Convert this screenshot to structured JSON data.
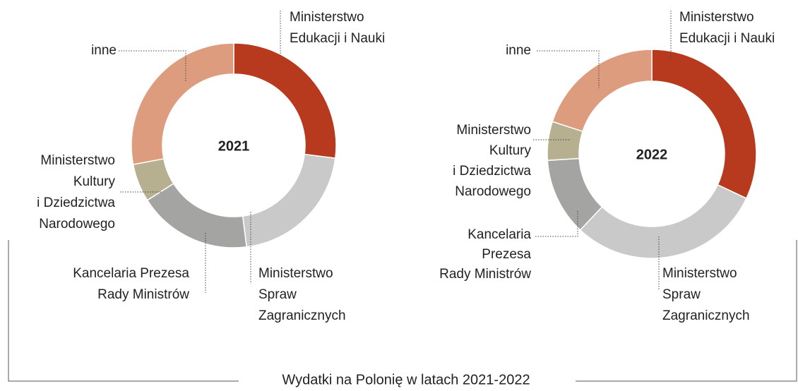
{
  "caption": "Wydatki na Polonię w latach 2021-2022",
  "chart_data": [
    {
      "type": "donut",
      "title": "2021",
      "categories": [
        "Ministerstwo\nEdukacji i Nauki",
        "Ministerstwo\nSpraw\nZagranicznych",
        "Kancelaria Prezesa\nRady Ministrów",
        "Ministerstwo\nKultury\ni Dziedzictwa\nNarodowego",
        "inne"
      ],
      "values": [
        27,
        21,
        18,
        6,
        28
      ],
      "colors": [
        "#b83a1e",
        "#c9c9c9",
        "#a4a4a2",
        "#b6af90",
        "#dd9c7d"
      ]
    },
    {
      "type": "donut",
      "title": "2022",
      "categories": [
        "Ministerstwo\nEdukacji i Nauki",
        "Ministerstwo\nSpraw\nZagranicznych",
        "Kancelaria\nPrezesa\nRady Ministrów",
        "Ministerstwo\nKultury\ni Dziedzictwa\nNarodowego",
        "inne"
      ],
      "values": [
        32,
        30,
        12,
        6,
        20
      ],
      "colors": [
        "#b83a1e",
        "#c9c9c9",
        "#a4a4a2",
        "#b6af90",
        "#dd9c7d"
      ]
    }
  ]
}
